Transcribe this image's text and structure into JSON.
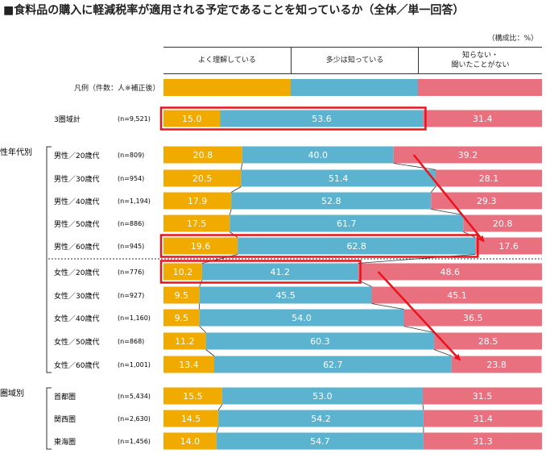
{
  "title": "■食料品の購入に軽減税率が適用される予定であることを知っているか（全体／単一回答）",
  "unit_label": "（構成比：%）",
  "legend_row_label": "凡例（件数：人※補正後）",
  "colors": {
    "yoku": "#f0aa00",
    "tashou": "#5bb3cf",
    "shiranai": "#e9707f",
    "highlight": "#e8141e"
  },
  "chart_data": {
    "type": "bar",
    "orientation": "horizontal",
    "stacked": true,
    "series": [
      {
        "name": "よく理解している",
        "values": [
          15.0,
          20.8,
          20.5,
          17.9,
          17.5,
          19.6,
          10.2,
          9.5,
          9.5,
          11.2,
          13.4,
          15.5,
          14.5,
          14.0
        ]
      },
      {
        "name": "多少は知っている",
        "values": [
          53.6,
          40.0,
          51.4,
          52.8,
          61.7,
          62.8,
          41.2,
          45.5,
          54.0,
          60.3,
          62.7,
          53.0,
          54.2,
          54.7
        ]
      },
      {
        "name": "知らない・\n聞いたことがない",
        "values": [
          31.4,
          39.2,
          28.1,
          29.3,
          20.8,
          17.6,
          48.6,
          45.1,
          36.5,
          28.5,
          23.8,
          31.5,
          31.4,
          31.3
        ]
      }
    ],
    "categories": [
      "3圏域計",
      "男性／20歳代",
      "男性／30歳代",
      "男性／40歳代",
      "男性／50歳代",
      "男性／60歳代",
      "女性／20歳代",
      "女性／30歳代",
      "女性／40歳代",
      "女性／50歳代",
      "女性／60歳代",
      "首都圏",
      "関西圏",
      "東海圏"
    ],
    "n_labels": [
      "(n=9,521)",
      "(n=809)",
      "(n=954)",
      "(n=1,194)",
      "(n=886)",
      "(n=945)",
      "(n=776)",
      "(n=927)",
      "(n=1,160)",
      "(n=868)",
      "(n=1,001)",
      "(n=5,434)",
      "(n=2,630)",
      "(n=1,456)"
    ],
    "groups": [
      {
        "label": "性年代別",
        "first": 1,
        "last": 10
      },
      {
        "label": "圏域別",
        "first": 11,
        "last": 13
      }
    ],
    "highlighted_rows": [
      {
        "row": 0,
        "segments": 2
      },
      {
        "row": 5,
        "segments": 2
      },
      {
        "row": 6,
        "segments": 2
      }
    ],
    "arrows": [
      {
        "from_row": 1,
        "to_row": 5
      },
      {
        "from_row": 6,
        "to_row": 10
      }
    ],
    "xlim": [
      0,
      100
    ]
  }
}
